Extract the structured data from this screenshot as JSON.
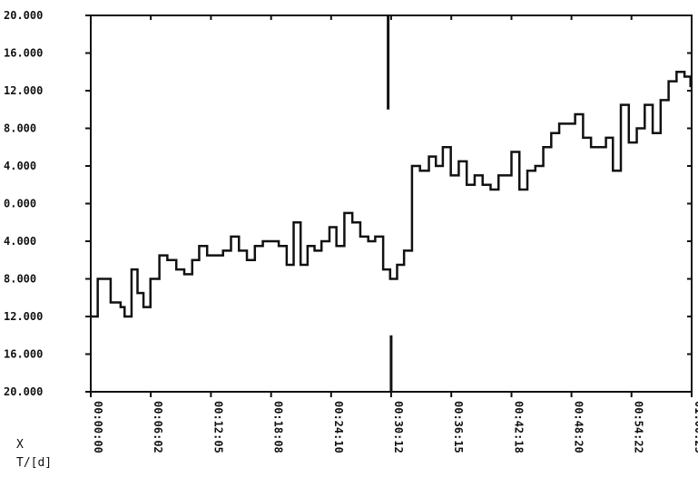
{
  "chart_data": {
    "type": "line",
    "step": true,
    "title": "",
    "xlabel": "X",
    "ylabel": "",
    "x_unit_label": "T/[d]",
    "y_tick_labels": [
      "20.000",
      "16.000",
      "12.000",
      "8.000",
      "4.000",
      "0.000",
      "4.000",
      "8.000",
      "12.000",
      "16.000",
      "20.000"
    ],
    "y_tick_values": [
      20,
      16,
      12,
      8,
      4,
      0,
      -4,
      -8,
      -12,
      -16,
      -20
    ],
    "ylim": [
      -20,
      20
    ],
    "x_tick_labels": [
      "00:00:00",
      "00:06:02",
      "00:12:05",
      "00:18:08",
      "00:24:10",
      "00:30:12",
      "00:36:15",
      "00:42:18",
      "00:48:20",
      "00:54:22",
      "01:00:25"
    ],
    "x_tick_values": [
      0,
      6.033,
      12.083,
      18.133,
      24.167,
      30.2,
      36.25,
      42.3,
      48.333,
      54.367,
      60.417
    ],
    "xlim": [
      0,
      60.417
    ],
    "x_unit": "minutes",
    "grid": false,
    "vertical_markers": [
      {
        "x": 29.9,
        "y_from": 20,
        "y_to": 10
      },
      {
        "x": 30.2,
        "y_from": -14,
        "y_to": -20
      }
    ],
    "series": [
      {
        "x": [
          0,
          0.7,
          1.6,
          2.0,
          3.0,
          3.4,
          4.1,
          4.7,
          5.3,
          6.0,
          6.9,
          7.7,
          8.6,
          9.4,
          10.2,
          10.9,
          11.7,
          12.5,
          13.3,
          14.1,
          14.9,
          15.7,
          16.5,
          17.3,
          18.1,
          18.9,
          19.7,
          20.4,
          21.1,
          21.8,
          22.5,
          23.2,
          24.0,
          24.7,
          25.5,
          26.3,
          27.1,
          27.9,
          28.6,
          29.4,
          30.1,
          30.8,
          31.5,
          32.3,
          33.1,
          34.0,
          34.7,
          35.4,
          36.2,
          37.0,
          37.8,
          38.6,
          39.4,
          40.2,
          41.0,
          41.6,
          42.3,
          43.1,
          43.9,
          44.7,
          45.5,
          46.3,
          47.1,
          47.9,
          48.7,
          49.5,
          50.3,
          51.1,
          51.8,
          52.5,
          53.3,
          54.1,
          54.9,
          55.7,
          56.5,
          57.3,
          58.1,
          58.9,
          59.7,
          60.3
        ],
        "y": [
          -12,
          -8,
          -8,
          -10.5,
          -11,
          -12,
          -7,
          -9.5,
          -11,
          -8,
          -5.5,
          -6,
          -7,
          -7.5,
          -6,
          -4.5,
          -5.5,
          -5.5,
          -5,
          -3.5,
          -5,
          -6,
          -4.5,
          -4,
          -4,
          -4.5,
          -6.5,
          -2,
          -6.5,
          -4.5,
          -5,
          -4,
          -2.5,
          -4.5,
          -1,
          -2,
          -3.5,
          -4,
          -3.5,
          -7,
          -8,
          -6.5,
          -5,
          4,
          3.5,
          5,
          4,
          6,
          3,
          4.5,
          2,
          3,
          2,
          1.5,
          3,
          3,
          5.5,
          1.5,
          3.5,
          4,
          6,
          7.5,
          8.5,
          8.5,
          9.5,
          7,
          6,
          6,
          7,
          3.5,
          10.5,
          6.5,
          8,
          10.5,
          7.5,
          11,
          13,
          14,
          13.5,
          12.5
        ]
      }
    ]
  }
}
